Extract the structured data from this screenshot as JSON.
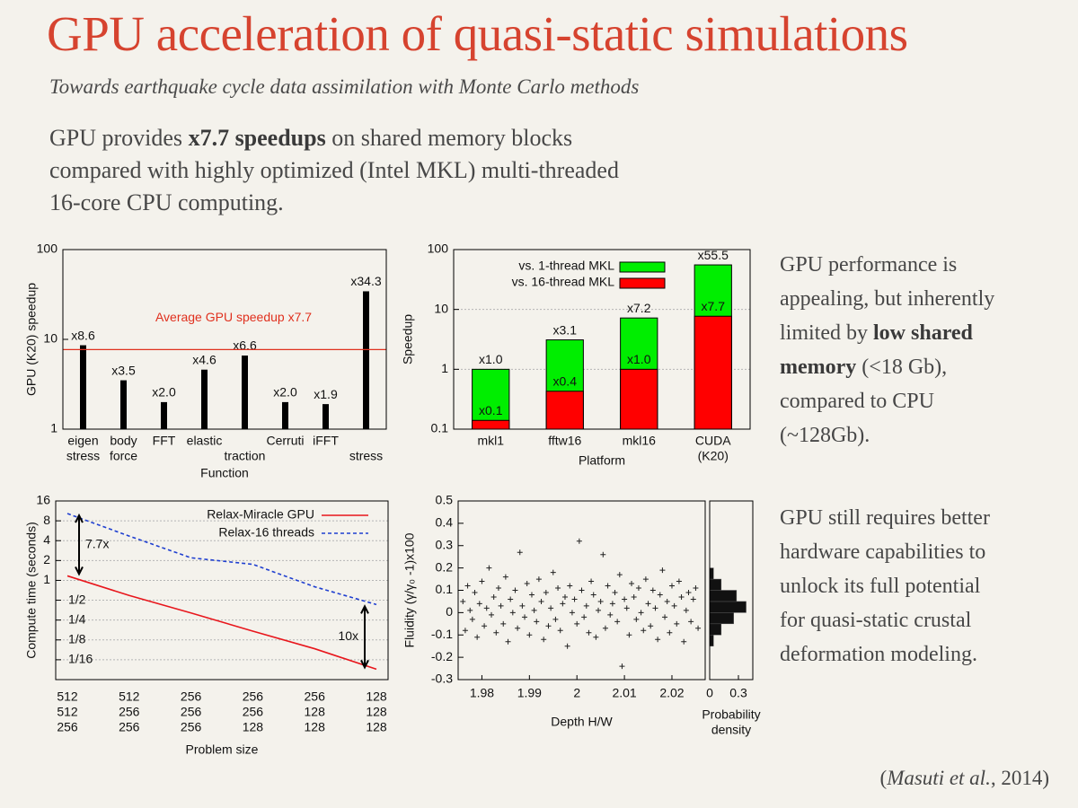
{
  "title": "GPU acceleration of quasi-static simulations",
  "subtitle": "Towards earthquake cycle data assimilation with Monte Carlo methods",
  "intro": [
    "GPU provides ",
    "x7.7 speedups",
    " on shared memory blocks",
    "compared with highly optimized (Intel MKL) multi-threaded",
    "16-core CPU computing."
  ],
  "side_text_1": [
    "GPU performance is",
    "appealing, but inherently",
    "limited by ",
    "low shared",
    "memory",
    " (<18 Gb),",
    "compared to CPU",
    "(~128Gb)."
  ],
  "side_text_2": [
    "GPU still requires better",
    "hardware capabilities to",
    "unlock its full potential",
    "for quasi-static crustal",
    "deformation modeling."
  ],
  "citation": [
    "(",
    "Masuti et al.",
    ", 2014)"
  ],
  "chart_data": [
    {
      "type": "bar",
      "yscale": "log",
      "ylabel": "GPU (K20) speedup",
      "xlabel": "Function",
      "categories": [
        [
          "eigen",
          "stress"
        ],
        [
          "body",
          "force"
        ],
        "FFT",
        "elastic",
        "traction",
        "Cerruti",
        "iFFT",
        "stress"
      ],
      "values": [
        8.6,
        3.5,
        2.0,
        4.6,
        6.6,
        2.0,
        1.9,
        34.3
      ],
      "value_labels": [
        "x8.6",
        "x3.5",
        "x2.0",
        "x4.6",
        "x6.6",
        "x2.0",
        "x1.9",
        "x34.3"
      ],
      "color": "#000000",
      "reference_line": {
        "value": 7.7,
        "label": "Average GPU speedup x7.7",
        "color": "#e0301e"
      },
      "ylim": [
        1,
        100
      ],
      "yticks": [
        1,
        10,
        100
      ],
      "grid": false
    },
    {
      "type": "bar",
      "yscale": "log",
      "ylabel": "Speedup",
      "xlabel": "Platform",
      "categories": [
        "mkl1",
        "fftw16",
        "mkl16",
        [
          "CUDA",
          "(K20)"
        ]
      ],
      "series": [
        {
          "name": "vs. 1-thread MKL",
          "color": "#00ee00",
          "values": [
            1.0,
            3.1,
            7.2,
            55.5
          ],
          "value_labels": [
            "x1.0",
            "x3.1",
            "x7.2",
            "x55.5"
          ]
        },
        {
          "name": "vs. 16-thread MKL",
          "color": "#ff0000",
          "values": [
            0.14,
            0.43,
            1.0,
            7.7
          ],
          "value_labels": [
            "x0.1",
            "x0.4",
            "x1.0",
            "x7.7"
          ]
        }
      ],
      "legend": "upper center",
      "ylim": [
        0.1,
        100
      ],
      "yticks": [
        0.1,
        1,
        10,
        100
      ],
      "grid": true
    },
    {
      "type": "line",
      "yscale": "log",
      "ylabel": "Compute time (seconds)",
      "xlabel": "Problem size",
      "categories": [
        [
          "512",
          "512",
          "256"
        ],
        [
          "512",
          "256",
          "256"
        ],
        [
          "256",
          "256",
          "256"
        ],
        [
          "256",
          "256",
          "128"
        ],
        [
          "256",
          "128",
          "128"
        ],
        [
          "128",
          "128",
          "128"
        ]
      ],
      "series": [
        {
          "name": "Relax-Miracle GPU",
          "color": "#e8161c",
          "linestyle": "solid",
          "values": [
            1.17,
            0.59,
            0.32,
            0.17,
            0.092,
            0.045
          ]
        },
        {
          "name": "Relax-16 threads",
          "color": "#1f3fd0",
          "linestyle": "dashed",
          "values": [
            10.3,
            4.7,
            2.2,
            1.75,
            0.8,
            0.43
          ]
        }
      ],
      "annotations": [
        "7.7x",
        "10x"
      ],
      "legend": "upper right",
      "ylim": [
        0.03125,
        16
      ],
      "yticks": [
        16,
        8,
        4,
        2,
        1,
        {
          "value": 0.5,
          "label": "1/2"
        },
        {
          "value": 0.25,
          "label": "1/4"
        },
        {
          "value": 0.125,
          "label": "1/8"
        },
        {
          "value": 0.0625,
          "label": "1/16"
        }
      ],
      "grid": true
    },
    {
      "type": "scatter",
      "ylabel": "Fluidity (γ/γ₀ -1)x100",
      "xlabel": "Depth H/W",
      "color": "#222222",
      "x": [
        1.976,
        1.9765,
        1.977,
        1.9775,
        1.978,
        1.9785,
        1.979,
        1.9795,
        1.98,
        1.9805,
        1.981,
        1.9815,
        1.982,
        1.9825,
        1.983,
        1.9835,
        1.984,
        1.9845,
        1.985,
        1.9855,
        1.986,
        1.9865,
        1.987,
        1.9875,
        1.988,
        1.9885,
        1.989,
        1.9895,
        1.99,
        1.9905,
        1.991,
        1.9915,
        1.992,
        1.9925,
        1.993,
        1.9935,
        1.994,
        1.9945,
        1.995,
        1.9955,
        1.996,
        1.9965,
        1.997,
        1.9975,
        1.998,
        1.9985,
        1.999,
        1.9995,
        2,
        2.0005,
        2.001,
        2.0015,
        2.002,
        2.0025,
        2.003,
        2.0035,
        2.004,
        2.0045,
        2.005,
        2.0055,
        2.006,
        2.0065,
        2.007,
        2.0075,
        2.008,
        2.0085,
        2.009,
        2.0095,
        2.01,
        2.0105,
        2.011,
        2.0115,
        2.012,
        2.0125,
        2.013,
        2.0135,
        2.014,
        2.0145,
        2.015,
        2.0155,
        2.016,
        2.0165,
        2.017,
        2.0175,
        2.018,
        2.0185,
        2.019,
        2.0195,
        2.02,
        2.0205,
        2.021,
        2.0215,
        2.022,
        2.0225,
        2.023,
        2.0235,
        2.024,
        2.0245,
        2.025,
        2.0255
      ],
      "values": [
        0.05,
        -0.08,
        0.12,
        0.01,
        -0.03,
        0.09,
        -0.11,
        0.04,
        0.14,
        -0.06,
        0.02,
        0.2,
        -0.01,
        0.07,
        -0.09,
        0.11,
        0.03,
        -0.05,
        0.16,
        -0.13,
        0.06,
        0,
        0.1,
        -0.07,
        0.27,
        0.03,
        -0.02,
        0.13,
        -0.1,
        0.08,
        0.01,
        -0.04,
        0.15,
        0.05,
        -0.12,
        0.09,
        -0.06,
        0.02,
        0.18,
        -0.03,
        0.11,
        -0.08,
        0.04,
        0.07,
        -0.15,
        0.12,
        0,
        0.06,
        -0.05,
        0.32,
        0.1,
        -0.02,
        0.03,
        -0.09,
        0.14,
        0.08,
        -0.11,
        0.01,
        0.05,
        0.26,
        -0.07,
        0.12,
        -0.01,
        0.04,
        0.09,
        -0.04,
        0.17,
        -0.24,
        0.06,
        0.02,
        -0.1,
        0.13,
        0.07,
        -0.03,
        0.11,
        0,
        -0.08,
        0.15,
        0.04,
        -0.06,
        0.1,
        0.02,
        -0.12,
        0.08,
        0.19,
        -0.02,
        0.05,
        -0.09,
        0.12,
        0.03,
        -0.05,
        0.14,
        0.07,
        -0.13,
        0.01,
        0.09,
        -0.04,
        0.06,
        0.11,
        -0.07
      ],
      "xlim": [
        1.975,
        2.027
      ],
      "xticks": [
        1.98,
        1.99,
        2,
        2.01,
        2.02
      ],
      "ylim": [
        -0.3,
        0.5
      ],
      "yticks": [
        -0.3,
        -0.2,
        -0.1,
        0,
        0.1,
        0.2,
        0.3,
        0.4,
        0.5
      ]
    },
    {
      "type": "histogram",
      "orientation": "horizontal",
      "xlabel": [
        "Probability",
        "density"
      ],
      "color": "#111111",
      "bins": [
        -0.15,
        -0.1,
        -0.05,
        0,
        0.05,
        0.1,
        0.15,
        0.2
      ],
      "counts": [
        0.04,
        0.12,
        0.25,
        0.38,
        0.28,
        0.12,
        0.04
      ],
      "xlim": [
        0,
        0.45
      ],
      "xticks": [
        0,
        0.3
      ],
      "ylim": [
        -0.3,
        0.5
      ]
    }
  ]
}
